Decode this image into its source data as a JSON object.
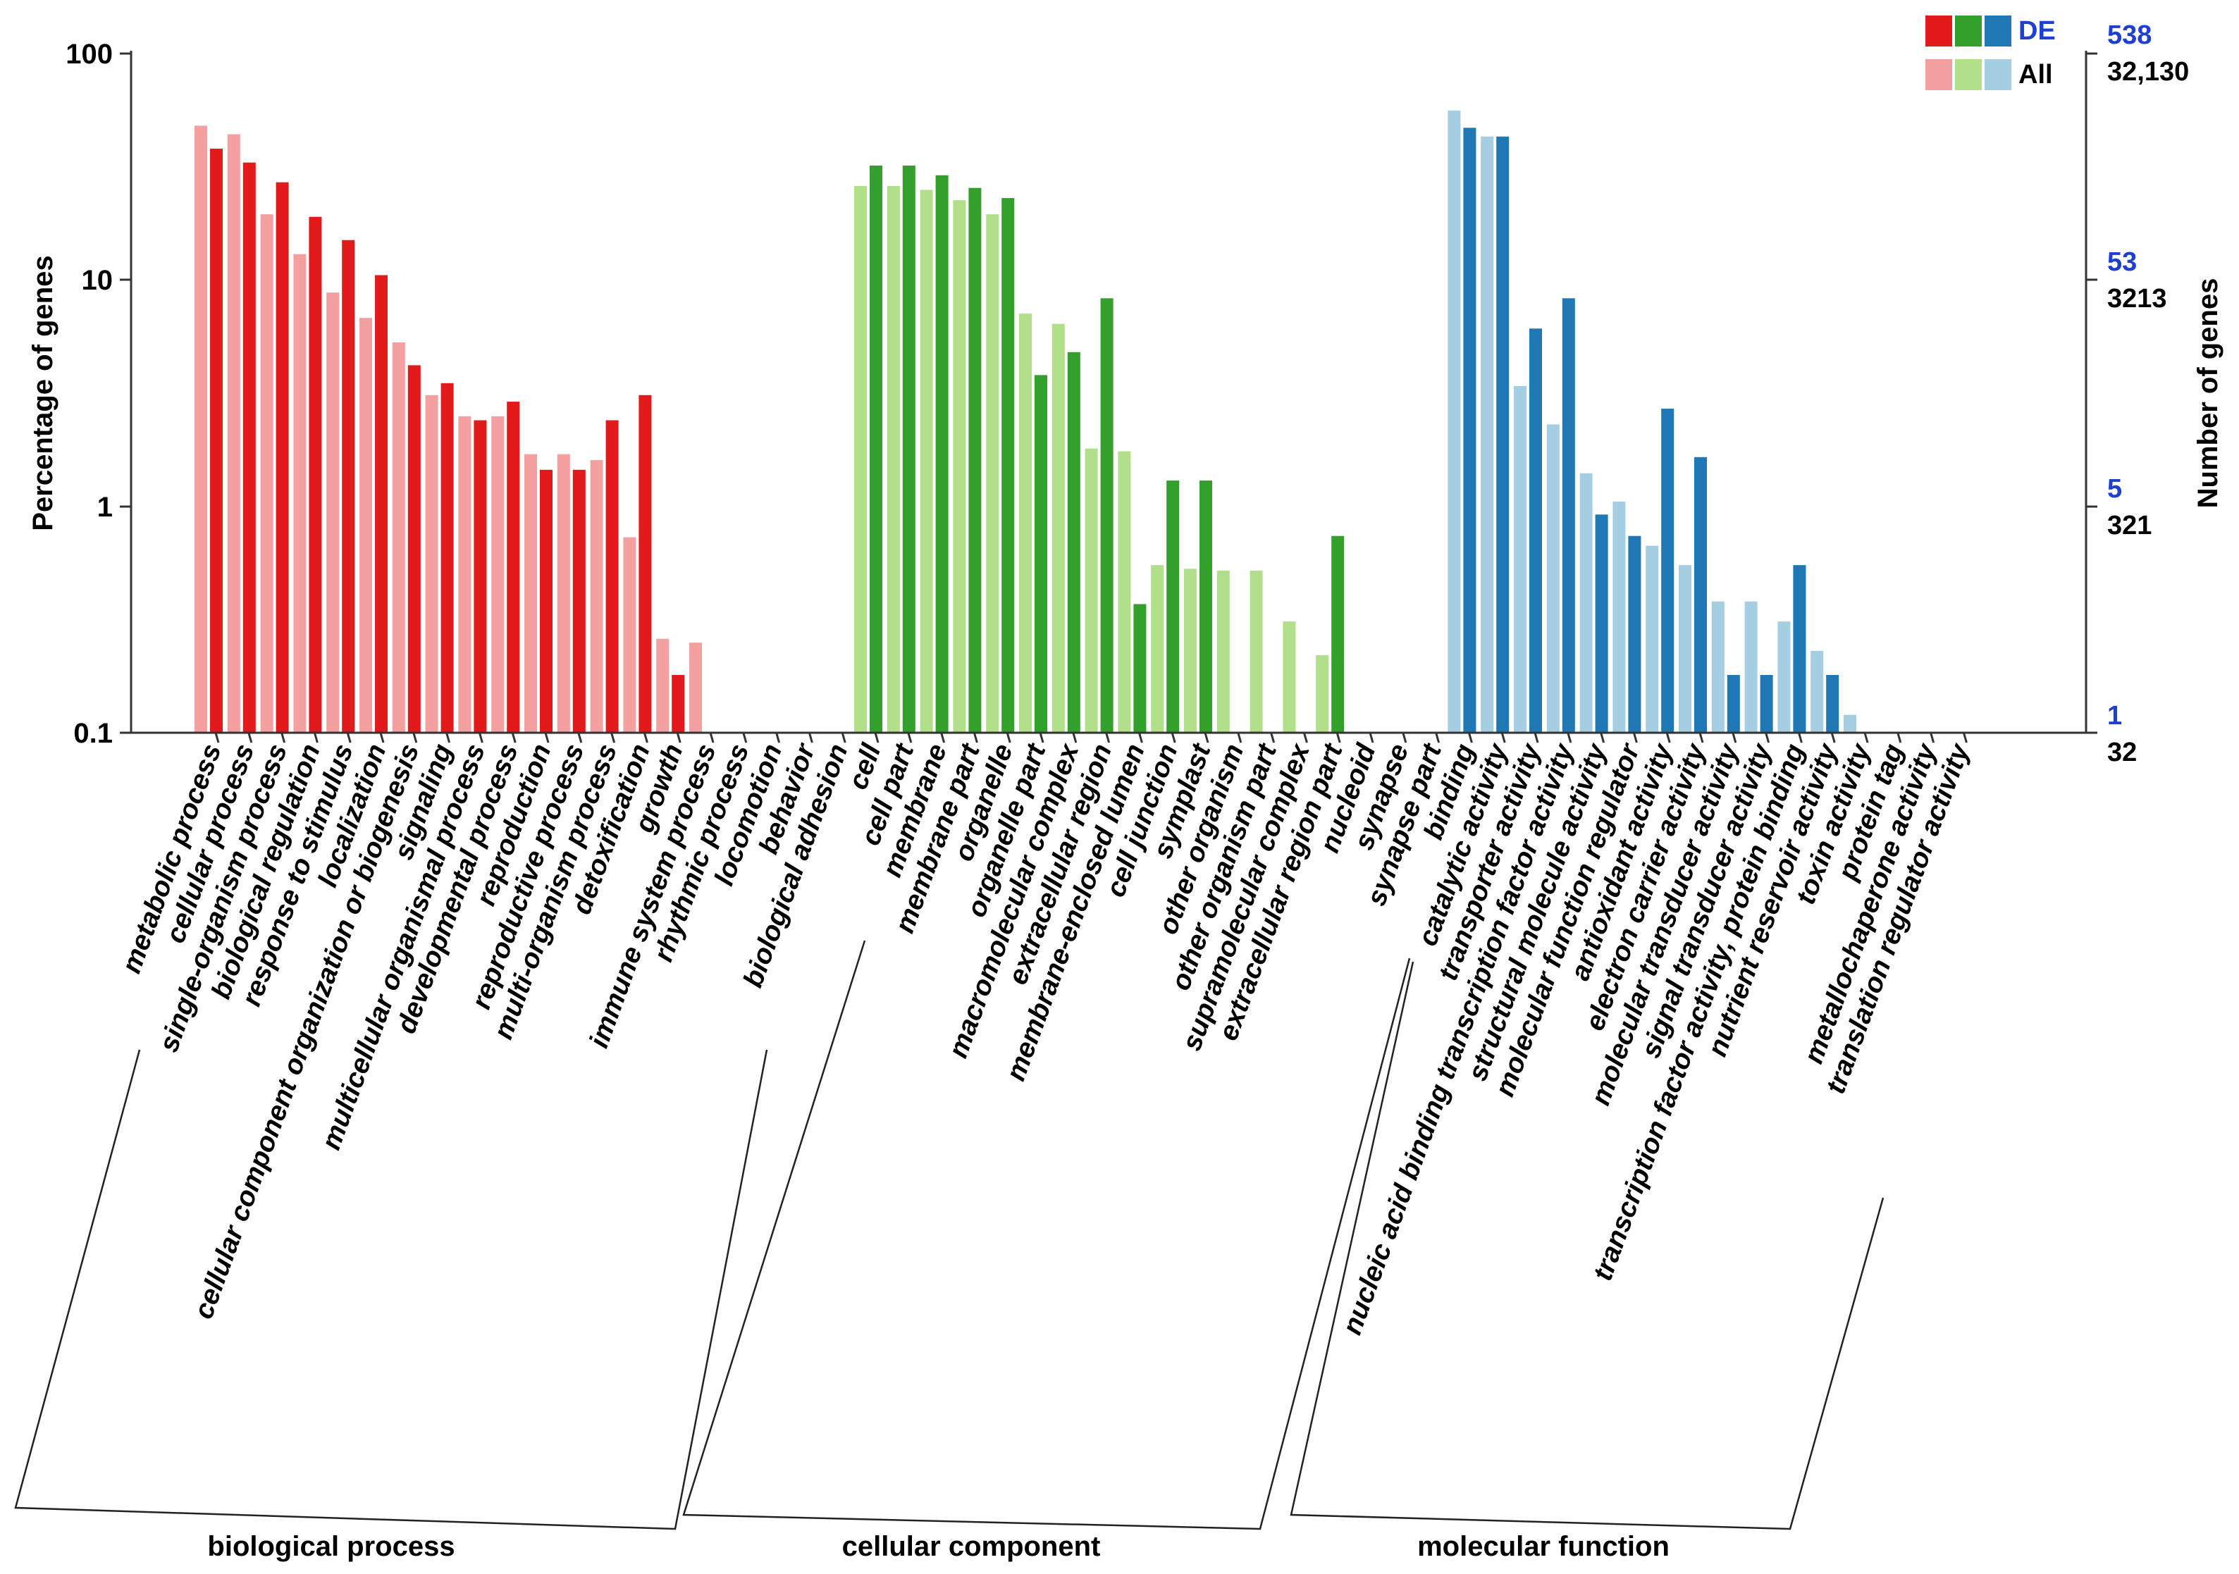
{
  "chart_data": {
    "type": "bar",
    "scale": "log",
    "ylim": [
      0.1,
      100
    ],
    "ylabel_left": "Percentage of genes",
    "ylabel_right": "Number of genes",
    "yticks_left": [
      "100",
      "10",
      "1",
      "0.1"
    ],
    "yticks_right": [
      {
        "de": "538",
        "all": "32,130"
      },
      {
        "de": "53",
        "all": "3213"
      },
      {
        "de": "5",
        "all": "321"
      },
      {
        "de": "1",
        "all": "32"
      }
    ],
    "legend": {
      "de_label": "DE",
      "all_label": "All"
    },
    "groups": [
      {
        "name": "biological process",
        "color_de": "#e31a1c",
        "color_all": "#f4a0a0",
        "categories": [
          "metabolic process",
          "cellular process",
          "single-organism process",
          "biological regulation",
          "response to stimulus",
          "localization",
          "cellular component organization or biogenesis",
          "signaling",
          "multicellular organismal process",
          "developmental process",
          "reproduction",
          "reproductive process",
          "multi-organism process",
          "detoxification",
          "growth",
          "immune system process",
          "rhythmic process",
          "locomotion",
          "behavior",
          "biological adhesion"
        ],
        "all": [
          48,
          44,
          19.5,
          13,
          8.8,
          6.8,
          5.3,
          3.1,
          2.5,
          2.5,
          1.7,
          1.7,
          1.6,
          0.73,
          0.26,
          0.25,
          null,
          null,
          null,
          null
        ],
        "de": [
          38,
          33,
          27,
          19,
          15,
          10.5,
          4.2,
          3.5,
          2.4,
          2.9,
          1.45,
          1.45,
          2.4,
          3.1,
          0.18,
          null,
          null,
          null,
          null,
          null
        ]
      },
      {
        "name": "cellular component",
        "color_de": "#33a02c",
        "color_all": "#b2df8a",
        "categories": [
          "cell",
          "cell part",
          "membrane",
          "membrane part",
          "organelle",
          "organelle part",
          "macromolecular complex",
          "extracellular region",
          "membrane-enclosed lumen",
          "cell junction",
          "symplast",
          "other organism",
          "other organism part",
          "supramolecular complex",
          "extracellular region part",
          "nucleoid",
          "synapse",
          "synapse part"
        ],
        "all": [
          26,
          26,
          25,
          22.5,
          19.5,
          7.1,
          6.4,
          1.8,
          1.75,
          0.55,
          0.53,
          0.52,
          0.52,
          0.31,
          0.22,
          null,
          null,
          null
        ],
        "de": [
          32,
          32,
          29,
          25.5,
          23,
          3.8,
          4.8,
          8.3,
          0.37,
          1.3,
          1.3,
          null,
          null,
          null,
          0.74,
          null,
          null,
          null
        ]
      },
      {
        "name": "molecular function",
        "color_de": "#1f78b4",
        "color_all": "#a6cee3",
        "categories": [
          "binding",
          "catalytic activity",
          "transporter activity",
          "nucleic acid binding transcription factor activity",
          "structural molecule activity",
          "molecular function regulator",
          "antioxidant activity",
          "electron carrier activity",
          "molecular transducer activity",
          "signal transducer activity",
          "transcription factor activity, protein binding",
          "nutrient reservoir activity",
          "toxin activity",
          "protein tag",
          "metallochaperone activity",
          "translation regulator activity"
        ],
        "all": [
          56,
          43,
          3.4,
          2.3,
          1.4,
          1.05,
          0.67,
          0.55,
          0.38,
          0.38,
          0.31,
          0.23,
          0.12,
          null,
          null,
          null
        ],
        "de": [
          47,
          43,
          6.1,
          8.3,
          0.92,
          0.74,
          2.7,
          1.65,
          0.18,
          0.18,
          0.55,
          0.18,
          null,
          null,
          null,
          null
        ]
      }
    ]
  }
}
